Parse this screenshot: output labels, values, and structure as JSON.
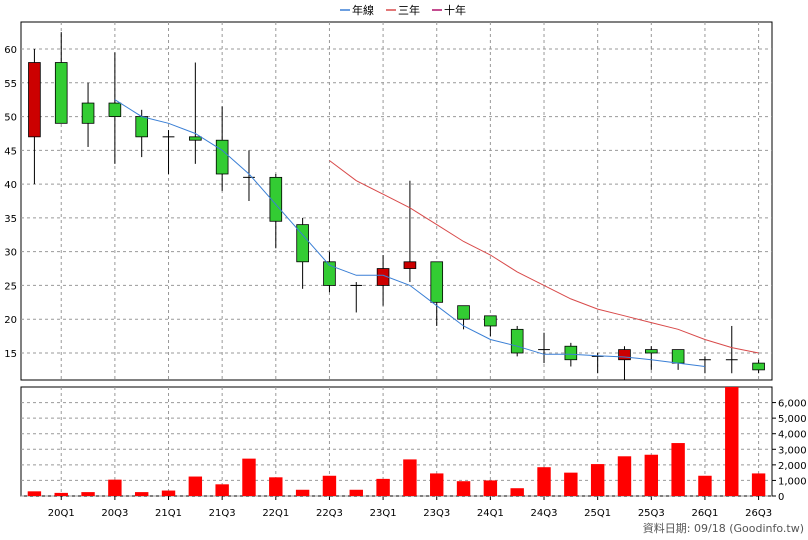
{
  "legend": [
    {
      "label": "年線",
      "color": "#3a7fd5"
    },
    {
      "label": "三年",
      "color": "#d84a4a"
    },
    {
      "label": "十年",
      "color": "#b0106a"
    }
  ],
  "footer": "資料日期: 09/18  (Goodinfo.tw)",
  "colors": {
    "up": "#cc0000",
    "down": "#33cc33",
    "volume": "#ff0000",
    "grid": "#999999",
    "wick": "#000000"
  },
  "chart_data": [
    {
      "type": "candlestick",
      "ylim": [
        11,
        64
      ],
      "y_ticks": [
        15,
        20,
        25,
        30,
        35,
        40,
        45,
        50,
        55,
        60
      ],
      "x_ticks": [
        {
          "i": 1,
          "label": "20Q1"
        },
        {
          "i": 3,
          "label": "20Q3"
        },
        {
          "i": 5,
          "label": "21Q1"
        },
        {
          "i": 7,
          "label": "21Q3"
        },
        {
          "i": 9,
          "label": "22Q1"
        },
        {
          "i": 11,
          "label": "22Q3"
        },
        {
          "i": 13,
          "label": "23Q1"
        },
        {
          "i": 15,
          "label": "23Q3"
        },
        {
          "i": 17,
          "label": "24Q1"
        },
        {
          "i": 19,
          "label": "24Q3"
        },
        {
          "i": 21,
          "label": "25Q1"
        },
        {
          "i": 23,
          "label": "25Q3"
        },
        {
          "i": 25,
          "label": "26Q1"
        },
        {
          "i": 27,
          "label": "26Q3"
        }
      ],
      "candles": [
        {
          "o": 47,
          "c": 58,
          "h": 60,
          "l": 40
        },
        {
          "o": 58,
          "c": 49,
          "h": 62.5,
          "l": 49
        },
        {
          "o": 52,
          "c": 49,
          "h": 55,
          "l": 45.5
        },
        {
          "o": 52,
          "c": 50,
          "h": 59.5,
          "l": 43
        },
        {
          "o": 50,
          "c": 47,
          "h": 51,
          "l": 44
        },
        {
          "o": 47,
          "c": 47,
          "h": 48,
          "l": 41.5
        },
        {
          "o": 47,
          "c": 46.5,
          "h": 58,
          "l": 43
        },
        {
          "o": 46.5,
          "c": 41.5,
          "h": 51.5,
          "l": 39
        },
        {
          "o": 41,
          "c": 41,
          "h": 45,
          "l": 37.5
        },
        {
          "o": 41,
          "c": 34.5,
          "h": 41.5,
          "l": 30.5
        },
        {
          "o": 34,
          "c": 28.5,
          "h": 35,
          "l": 24.5
        },
        {
          "o": 28.5,
          "c": 25,
          "h": 30,
          "l": 24
        },
        {
          "o": 25,
          "c": 25,
          "h": 25.5,
          "l": 21
        },
        {
          "o": 25,
          "c": 27.5,
          "h": 29.5,
          "l": 22
        },
        {
          "o": 27.5,
          "c": 28.5,
          "h": 40.5,
          "l": 25.5
        },
        {
          "o": 28.5,
          "c": 22.5,
          "h": 28.5,
          "l": 19
        },
        {
          "o": 22,
          "c": 20,
          "h": 22,
          "l": 18.5
        },
        {
          "o": 20.5,
          "c": 19,
          "h": 20.5,
          "l": 17.5
        },
        {
          "o": 18.5,
          "c": 15,
          "h": 19,
          "l": 14.5
        },
        {
          "o": 15.5,
          "c": 15.5,
          "h": 18,
          "l": 13.5
        },
        {
          "o": 16,
          "c": 14,
          "h": 16.5,
          "l": 13
        },
        {
          "o": 14.5,
          "c": 14.5,
          "h": 15,
          "l": 12
        },
        {
          "o": 14,
          "c": 15.5,
          "h": 16,
          "l": 11
        },
        {
          "o": 15.5,
          "c": 15,
          "h": 16,
          "l": 12.5
        },
        {
          "o": 15.5,
          "c": 13.5,
          "h": 15.5,
          "l": 12.5
        },
        {
          "o": 14,
          "c": 14,
          "h": 14.5,
          "l": 12
        },
        {
          "o": 14,
          "c": 14,
          "h": 19,
          "l": 12
        },
        {
          "o": 13.5,
          "c": 12.5,
          "h": 14,
          "l": 12
        }
      ],
      "series": [
        {
          "name": "年線",
          "start": 3,
          "values": [
            52.5,
            50,
            49,
            47.5,
            45,
            41.5,
            37,
            32.5,
            28,
            26.5,
            26.5,
            25,
            22,
            19,
            17,
            16,
            14.8,
            14.8,
            14.6,
            14.4,
            14,
            13.5,
            13
          ]
        },
        {
          "name": "三年",
          "start": 11,
          "values": [
            43.5,
            40.5,
            38.5,
            36.5,
            34,
            31.5,
            29.5,
            27,
            25,
            23,
            21.5,
            20.5,
            19.5,
            18.5,
            17,
            15.8,
            15
          ]
        },
        {
          "name": "十年",
          "start": 11,
          "values": []
        }
      ]
    },
    {
      "type": "bar",
      "ylim": [
        0,
        7000
      ],
      "y_ticks": [
        0,
        1000,
        2000,
        3000,
        4000,
        5000,
        6000
      ],
      "y_tick_labels": [
        "0",
        "1,000",
        "2,000",
        "3,000",
        "4,000",
        "5,000",
        "6,000"
      ],
      "values": [
        300,
        200,
        250,
        1050,
        250,
        350,
        1250,
        750,
        2400,
        1200,
        400,
        1300,
        400,
        1100,
        2350,
        1450,
        950,
        1000,
        500,
        1850,
        1500,
        2050,
        2550,
        2650,
        3400,
        1300,
        7000,
        1450
      ]
    }
  ]
}
